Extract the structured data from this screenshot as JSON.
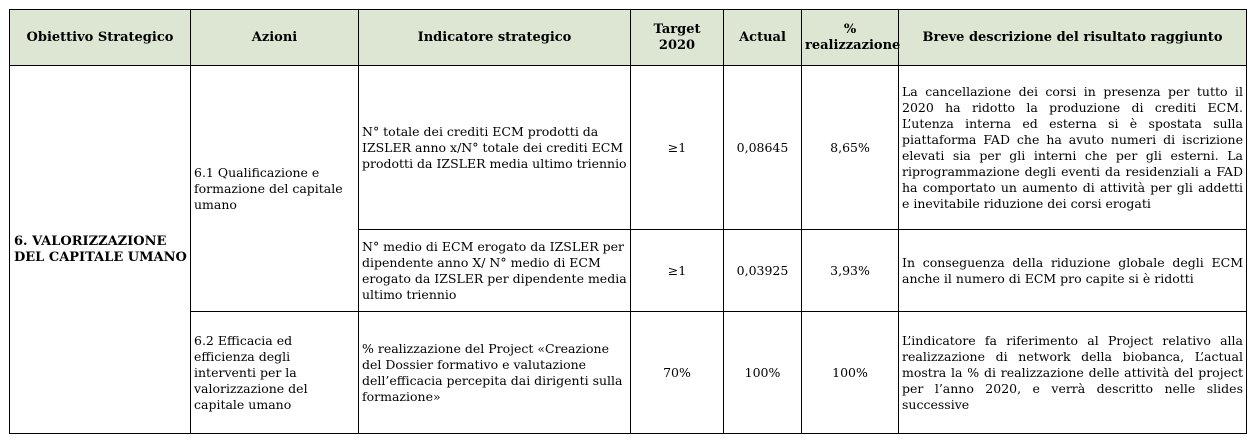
{
  "headers": {
    "obiettivo": "Obiettivo Strategico",
    "azioni": "Azioni",
    "indicatore": "Indicatore strategico",
    "target": "Target 2020",
    "actual": "Actual",
    "pct_symbol": "%",
    "pct_word": "realizzazione",
    "descrizione": "Breve descrizione del risultato raggiunto"
  },
  "objective": "6. VALORIZZAZIONE DEL CAPITALE UMANO",
  "actions": [
    {
      "label": "6.1 Qualificazione e formazione del capitale umano"
    },
    {
      "label": "6.2 Efficacia ed efficienza degli interventi per la valorizzazione del capitale umano"
    }
  ],
  "rows": [
    {
      "indicator": "N° totale dei crediti ECM prodotti da IZSLER anno x/N° totale dei crediti ECM prodotti da IZSLER media ultimo triennio",
      "target": "≥1",
      "actual": "0,08645",
      "realizzazione": "8,65%",
      "description": "La cancellazione dei corsi in presenza per tutto il 2020 ha ridotto la produzione di crediti ECM. L’utenza interna ed esterna si è spostata sulla piattaforma FAD che ha avuto numeri di iscrizione elevati sia per gli interni che per gli esterni. La riprogrammazione degli eventi da residenziali a FAD ha comportato un aumento di attività per gli addetti e inevitabile riduzione dei corsi erogati"
    },
    {
      "indicator": "N° medio di ECM erogato da IZSLER per dipendente anno X/ N° medio di ECM erogato da IZSLER per dipendente media ultimo triennio",
      "target": "≥1",
      "actual": "0,03925",
      "realizzazione": "3,93%",
      "description": "In conseguenza della riduzione globale degli ECM anche il numero di ECM pro capite si è ridotti"
    },
    {
      "indicator": "% realizzazione del Project «Creazione del Dossier formativo e valutazione dell’efficacia percepita dai dirigenti sulla formazione»",
      "target": "70%",
      "actual": "100%",
      "realizzazione": "100%",
      "description": "L’indicatore fa riferimento al Project relativo alla realizzazione di network della biobanca, L’actual mostra la % di realizzazione delle attività del project per l’anno 2020, e verrà descritto nelle slides successive"
    }
  ]
}
